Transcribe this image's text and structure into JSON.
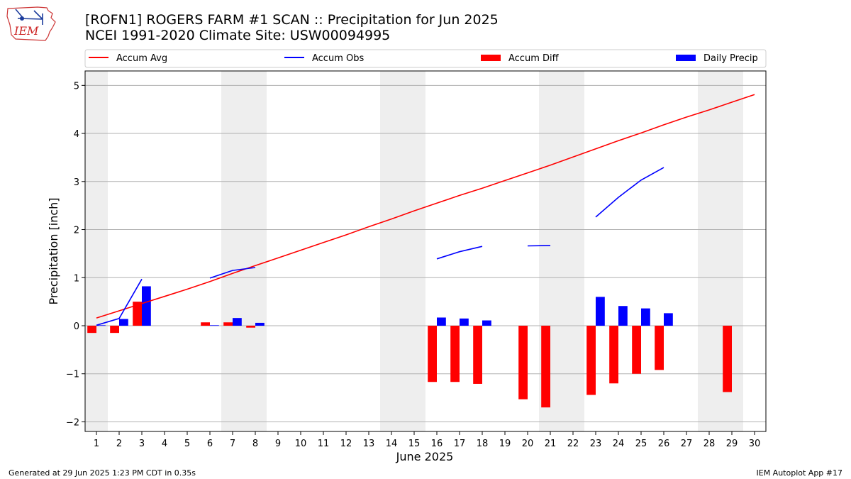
{
  "header": {
    "title_line1": "[ROFN1] ROGERS FARM #1 SCAN :: Precipitation for Jun 2025",
    "title_line2": "NCEI 1991-2020 Climate Site: USW00094995",
    "logo_text": "IEM"
  },
  "footer": {
    "left": "Generated at 29 Jun 2025 1:23 PM CDT in 0.35s",
    "right": "IEM Autoplot App #17"
  },
  "colors": {
    "avg": "#ff0000",
    "obs": "#0000ff",
    "diff": "#ff0000",
    "daily": "#0000ff",
    "weekend_shade": "#eeeeee",
    "grid": "#b0b0b0"
  },
  "chart_data": {
    "type": "bar",
    "xlabel": "June 2025",
    "ylabel": "Precipitation [inch]",
    "xlim": [
      0.5,
      30.5
    ],
    "ylim": [
      -2.2,
      5.3
    ],
    "yticks": [
      5,
      4,
      3,
      2,
      1,
      0,
      -1,
      -2
    ],
    "ytick_labels": [
      "5",
      "4",
      "3",
      "2",
      "1",
      "0",
      "−1",
      "−2"
    ],
    "days": [
      1,
      2,
      3,
      4,
      5,
      6,
      7,
      8,
      9,
      10,
      11,
      12,
      13,
      14,
      15,
      16,
      17,
      18,
      19,
      20,
      21,
      22,
      23,
      24,
      25,
      26,
      27,
      28,
      29,
      30
    ],
    "grid": "horizontal",
    "legend_position": "top",
    "shaded_days": [
      1,
      7,
      8,
      14,
      15,
      21,
      22,
      28,
      29
    ],
    "legend": [
      {
        "label": "Accum Avg",
        "kind": "line",
        "color": "#ff0000"
      },
      {
        "label": "Accum Obs",
        "kind": "line",
        "color": "#0000ff"
      },
      {
        "label": "Accum Diff",
        "kind": "bar",
        "color": "#ff0000"
      },
      {
        "label": "Daily Precip",
        "kind": "bar",
        "color": "#0000ff"
      }
    ],
    "series": [
      {
        "name": "Accum Avg",
        "type": "line",
        "values": [
          0.16,
          0.31,
          0.46,
          0.61,
          0.76,
          0.92,
          1.09,
          1.25,
          1.41,
          1.57,
          1.73,
          1.89,
          2.06,
          2.22,
          2.39,
          2.55,
          2.71,
          2.86,
          3.02,
          3.18,
          3.34,
          3.51,
          3.68,
          3.85,
          4.01,
          4.18,
          4.34,
          4.49,
          4.65,
          4.81
        ]
      },
      {
        "name": "Accum Obs",
        "type": "line",
        "values": [
          0.01,
          0.15,
          0.97,
          null,
          null,
          0.99,
          1.15,
          1.21,
          null,
          null,
          null,
          null,
          null,
          null,
          null,
          1.39,
          1.54,
          1.65,
          null,
          1.66,
          1.67,
          null,
          2.26,
          2.67,
          3.03,
          3.29,
          null,
          null,
          null,
          null
        ]
      },
      {
        "name": "Accum Diff",
        "type": "bar",
        "values": [
          -0.15,
          -0.15,
          0.5,
          null,
          null,
          0.07,
          0.07,
          -0.04,
          null,
          null,
          null,
          null,
          null,
          null,
          null,
          -1.17,
          -1.17,
          -1.21,
          null,
          -1.53,
          -1.7,
          null,
          -1.44,
          -1.2,
          -1.0,
          -0.92,
          null,
          null,
          -1.38,
          null
        ]
      },
      {
        "name": "Daily Precip",
        "type": "bar",
        "values": [
          0.01,
          0.14,
          0.82,
          null,
          null,
          0.01,
          0.16,
          0.06,
          null,
          null,
          null,
          null,
          null,
          null,
          null,
          0.17,
          0.15,
          0.11,
          null,
          null,
          null,
          null,
          0.6,
          0.41,
          0.36,
          0.26,
          null,
          null,
          null,
          null
        ]
      }
    ]
  }
}
